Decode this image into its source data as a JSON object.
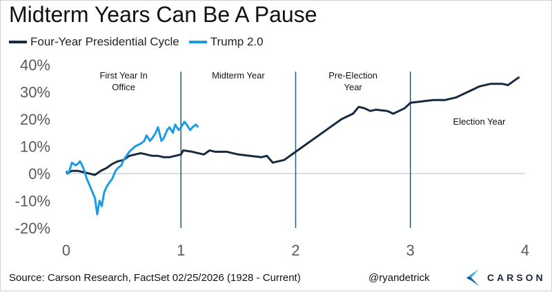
{
  "title": "Midterm Years Can Be A Pause",
  "footer": {
    "source": "Source: Carson Research, FactSet 02/25/2026   (1928 - Current)",
    "handle": "@ryandetrick",
    "logo_text": "CARSON"
  },
  "colors": {
    "cycle": "#152a40",
    "trump": "#1a9be6",
    "divider": "#2e5a72",
    "zero": "#d0d0d0"
  },
  "chart_data": {
    "type": "line",
    "title": "Midterm Years Can Be A Pause",
    "xlabel": "",
    "ylabel": "",
    "xlim": [
      0,
      4
    ],
    "ylim": [
      -20,
      40
    ],
    "x_ticks": [
      "0",
      "1",
      "2",
      "3",
      "4"
    ],
    "y_ticks": [
      "40%",
      "30%",
      "20%",
      "10%",
      "0%",
      "-10%",
      "-20%"
    ],
    "legend_position": "top-left",
    "annotations": [
      {
        "text": [
          "First Year In",
          "Office"
        ],
        "x": 0.5,
        "y": 35
      },
      {
        "text": [
          "Midterm Year"
        ],
        "x": 1.5,
        "y": 35
      },
      {
        "text": [
          "Pre-Election",
          "Year"
        ],
        "x": 2.5,
        "y": 35
      },
      {
        "text": [
          "Election Year"
        ],
        "x": 3.6,
        "y": 18
      }
    ],
    "dividers": [
      1,
      2,
      3
    ],
    "series": [
      {
        "name": "Four-Year Presidential Cycle",
        "color": "#152a40",
        "x": [
          0,
          0.05,
          0.1,
          0.15,
          0.2,
          0.25,
          0.3,
          0.35,
          0.4,
          0.45,
          0.5,
          0.55,
          0.6,
          0.65,
          0.7,
          0.75,
          0.8,
          0.85,
          0.9,
          0.95,
          1.0,
          1.02,
          1.1,
          1.15,
          1.2,
          1.25,
          1.3,
          1.4,
          1.5,
          1.6,
          1.7,
          1.75,
          1.8,
          1.85,
          1.9,
          1.95,
          2.0,
          2.05,
          2.1,
          2.2,
          2.3,
          2.4,
          2.5,
          2.55,
          2.6,
          2.65,
          2.7,
          2.8,
          2.85,
          2.9,
          2.95,
          3.0,
          3.1,
          3.2,
          3.3,
          3.4,
          3.5,
          3.55,
          3.6,
          3.7,
          3.8,
          3.85,
          3.9,
          3.95
        ],
        "y": [
          0,
          1,
          1,
          0.5,
          0,
          -0.5,
          1,
          2,
          3.5,
          4.5,
          5,
          6.5,
          7,
          7.5,
          7,
          6.5,
          6.5,
          6,
          6,
          6.5,
          7,
          8.5,
          8,
          7.5,
          7,
          8.5,
          8,
          8,
          7,
          6.5,
          6,
          6.5,
          4,
          4.5,
          5,
          6.5,
          8,
          9.5,
          11,
          14,
          17,
          20,
          22,
          24.5,
          24,
          23,
          23.5,
          23,
          22,
          23,
          24,
          26,
          26.5,
          27,
          27,
          28,
          30,
          31,
          32,
          33,
          33,
          32.5,
          34,
          35.5
        ]
      },
      {
        "name": "Trump 2.0",
        "color": "#1a9be6",
        "x": [
          0,
          0.02,
          0.05,
          0.08,
          0.1,
          0.12,
          0.15,
          0.18,
          0.2,
          0.23,
          0.25,
          0.27,
          0.29,
          0.31,
          0.33,
          0.35,
          0.38,
          0.4,
          0.43,
          0.45,
          0.48,
          0.5,
          0.55,
          0.6,
          0.65,
          0.68,
          0.7,
          0.73,
          0.75,
          0.78,
          0.8,
          0.83,
          0.85,
          0.88,
          0.9,
          0.93,
          0.95,
          0.98,
          1.0,
          1.03,
          1.05,
          1.08,
          1.1,
          1.13,
          1.15
        ],
        "y": [
          1,
          0,
          4,
          3,
          3.5,
          4.5,
          2,
          -2,
          -4,
          -7,
          -9,
          -15,
          -10,
          -12,
          -7,
          -5,
          -3,
          -2,
          1,
          2,
          3,
          5,
          8,
          10,
          11,
          12,
          14,
          12,
          13,
          15,
          17,
          12,
          13,
          16,
          17,
          15,
          18,
          16,
          17,
          19,
          18,
          16,
          17,
          18,
          17
        ]
      }
    ]
  }
}
